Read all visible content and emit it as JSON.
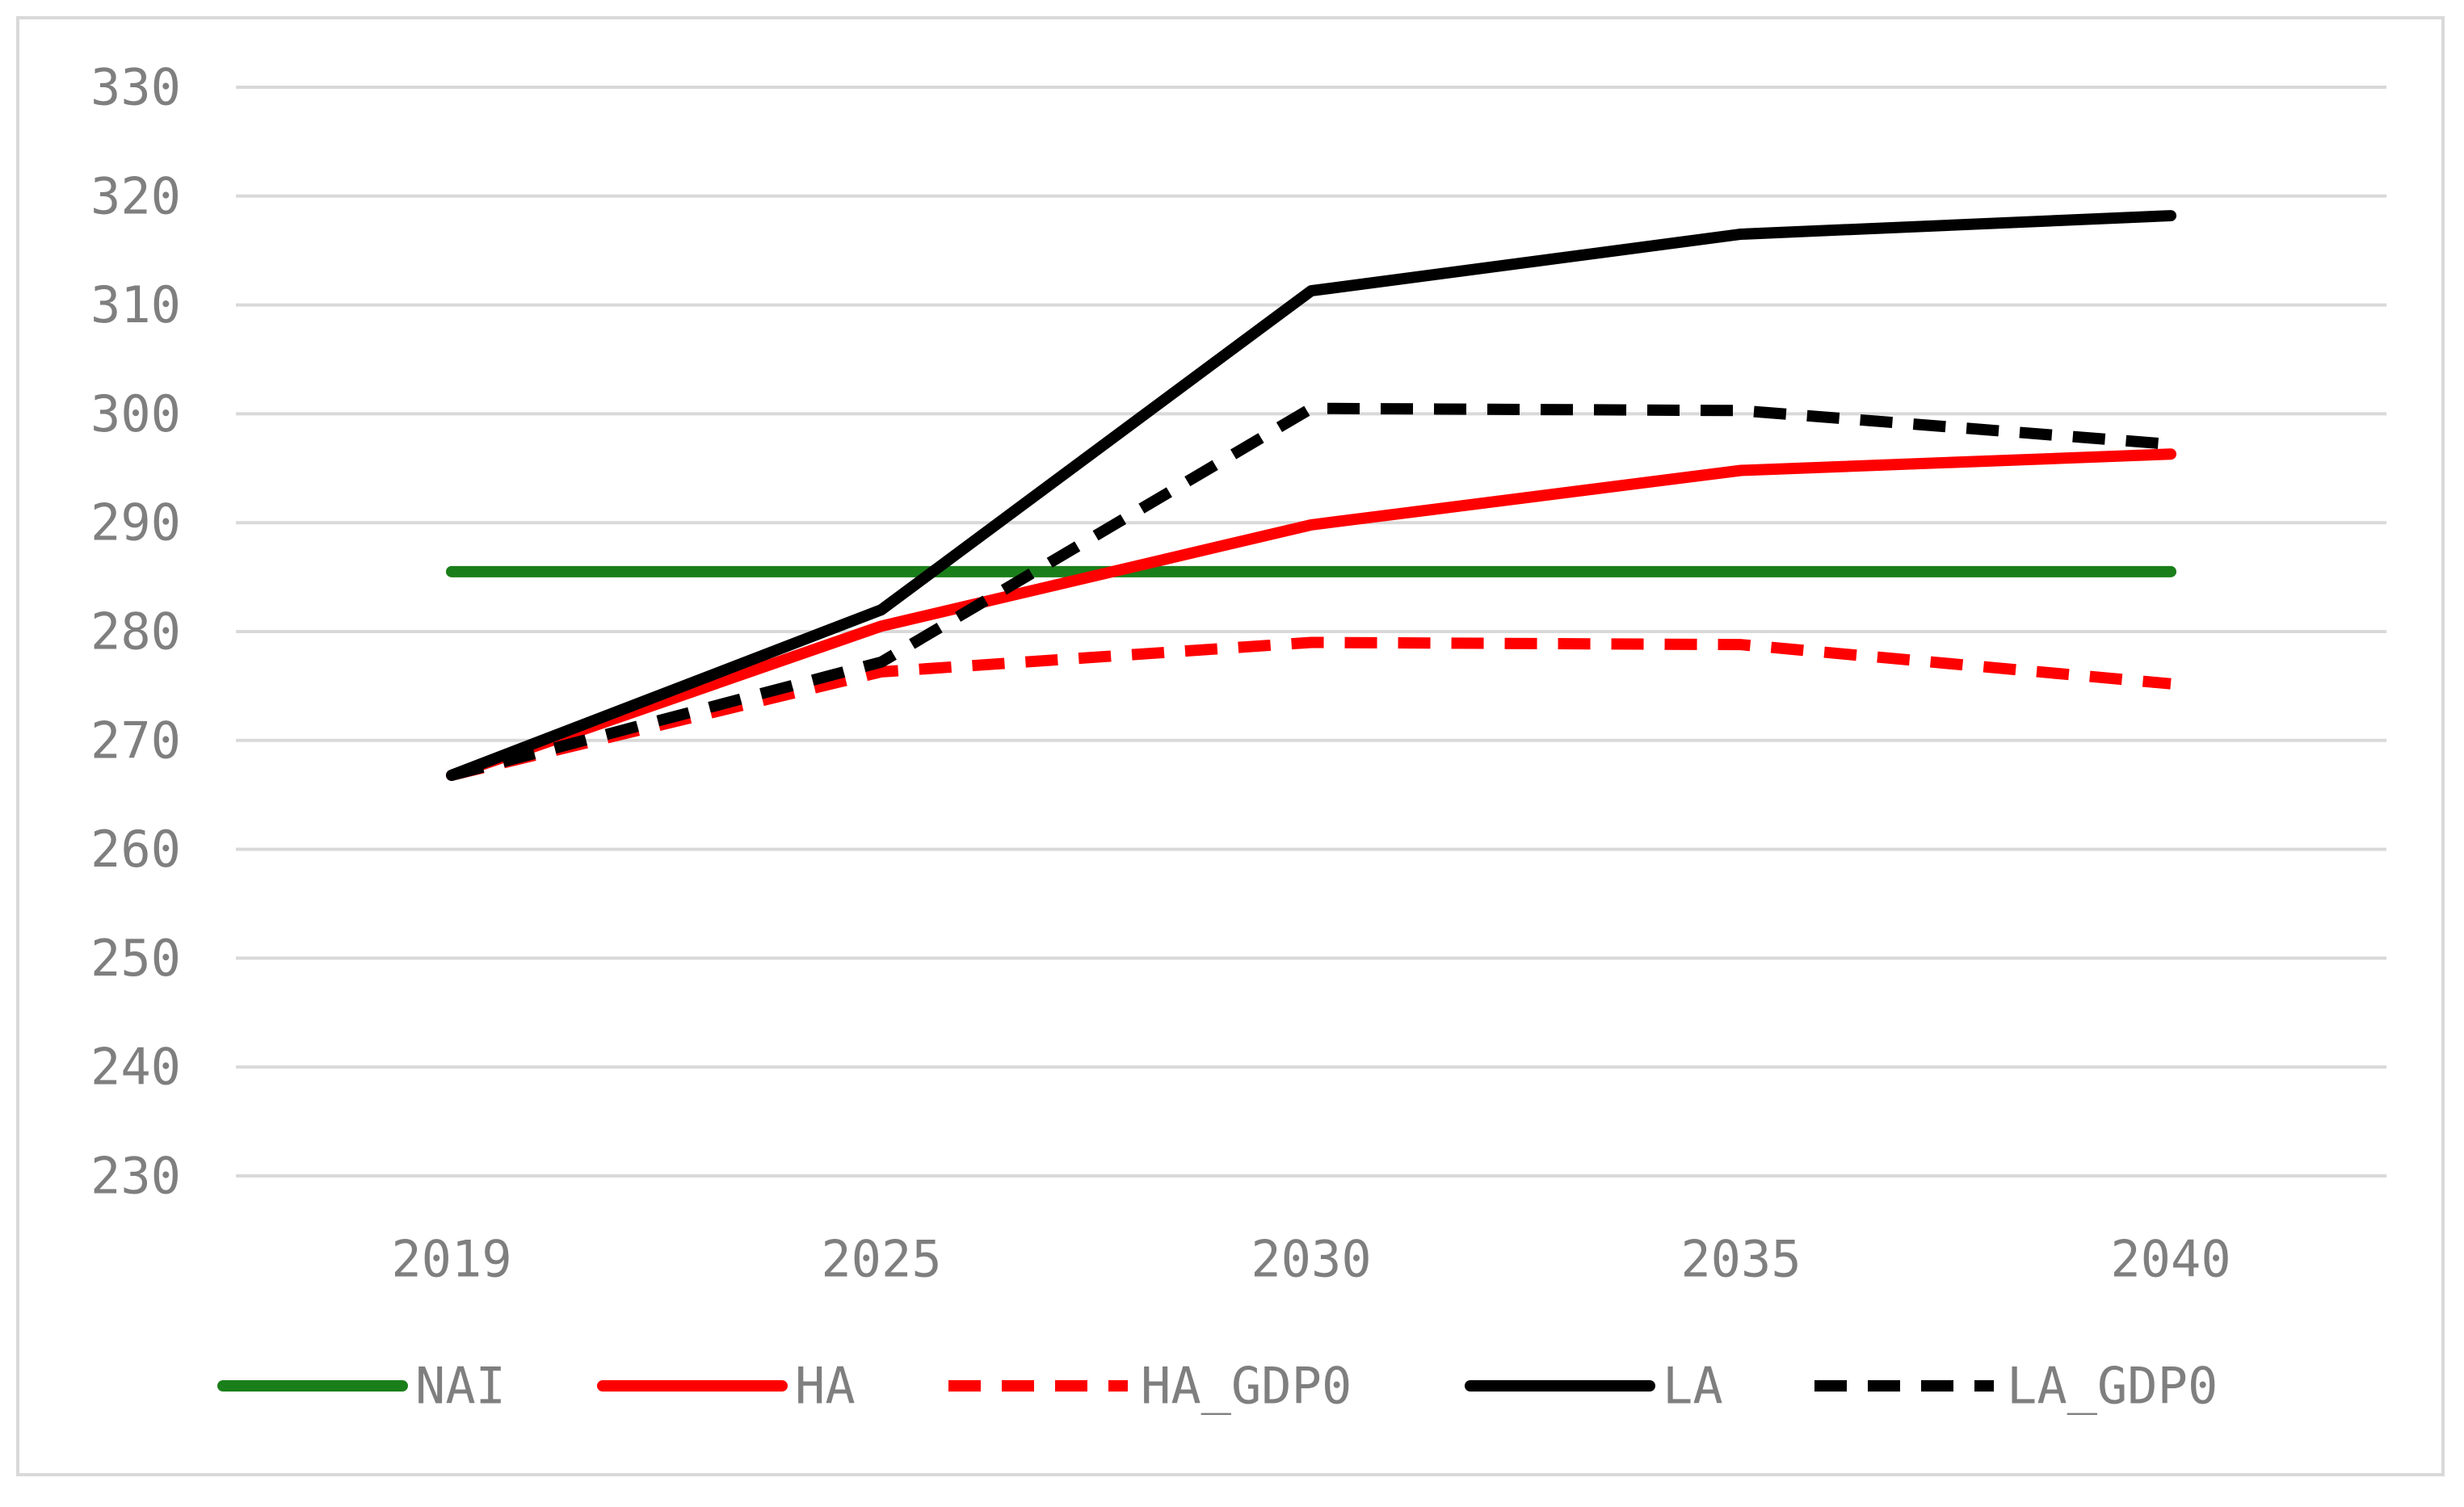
{
  "chart_data": {
    "type": "line",
    "title": "",
    "xlabel": "",
    "ylabel": "",
    "x": [
      "2019",
      "2025",
      "2030",
      "2035",
      "2040"
    ],
    "ylim": [
      230,
      330
    ],
    "yticks": [
      230,
      240,
      250,
      260,
      270,
      280,
      290,
      300,
      310,
      320,
      330
    ],
    "grid": "horizontal",
    "legend_position": "bottom",
    "series": [
      {
        "name": "NAI",
        "values": [
          285.5,
          285.5,
          285.5,
          285.5,
          285.5
        ],
        "color": "#1a7f1a",
        "dash": "solid"
      },
      {
        "name": "HA",
        "values": [
          266.8,
          280.5,
          289.8,
          294.8,
          296.3
        ],
        "color": "#ff0000",
        "dash": "solid"
      },
      {
        "name": "HA_GDP0",
        "values": [
          266.8,
          276.3,
          279.0,
          278.8,
          275.2
        ],
        "color": "#ff0000",
        "dash": "dashed"
      },
      {
        "name": "LA",
        "values": [
          266.8,
          282.0,
          311.3,
          316.5,
          318.2
        ],
        "color": "#000000",
        "dash": "solid"
      },
      {
        "name": "LA_GDP0",
        "values": [
          266.8,
          277.2,
          300.5,
          300.3,
          297.2
        ],
        "color": "#000000",
        "dash": "dashed"
      }
    ]
  }
}
